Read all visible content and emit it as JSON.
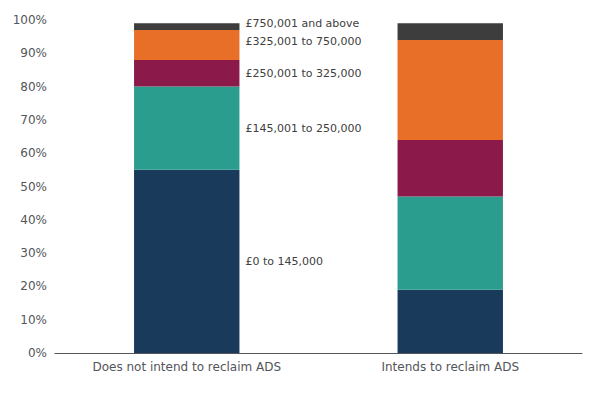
{
  "chart_data": {
    "type": "bar",
    "stacked": true,
    "categories": [
      "Does not intend to reclaim ADS",
      "Intends to reclaim ADS"
    ],
    "series": [
      {
        "name": "£0 to 145,000",
        "color": "#1a3a5c",
        "values": [
          55,
          19
        ]
      },
      {
        "name": "£145,001 to 250,000",
        "color": "#2a9d8f",
        "values": [
          25,
          28
        ]
      },
      {
        "name": "£250,001 to 325,000",
        "color": "#8b1a4a",
        "values": [
          8,
          17
        ]
      },
      {
        "name": "£325,001 to 750,000",
        "color": "#e76f28",
        "values": [
          9,
          30
        ]
      },
      {
        "name": "£750,001 and above",
        "color": "#3d3d3d",
        "values": [
          2,
          5
        ]
      }
    ],
    "annotations": [
      {
        "text": "£750,001 and above",
        "y": 99.0
      },
      {
        "text": "£325,001 to 750,000",
        "y": 93.5
      },
      {
        "text": "£250,001 to 325,000",
        "y": 84.0
      },
      {
        "text": "£145,001 to 250,000",
        "y": 67.5
      },
      {
        "text": "£0 to 145,000",
        "y": 27.5
      }
    ],
    "ylim": [
      0,
      100
    ],
    "yticks": [
      {
        "value": 0,
        "label": "0%"
      },
      {
        "value": 10,
        "label": "10%"
      },
      {
        "value": 20,
        "label": "20%"
      },
      {
        "value": 30,
        "label": "30%"
      },
      {
        "value": 40,
        "label": "40%"
      },
      {
        "value": 50,
        "label": "50%"
      },
      {
        "value": 60,
        "label": "60%"
      },
      {
        "value": 70,
        "label": "70%"
      },
      {
        "value": 80,
        "label": "80%"
      },
      {
        "value": 90,
        "label": "90%"
      },
      {
        "value": 100,
        "label": "100%"
      }
    ],
    "grid": false
  }
}
